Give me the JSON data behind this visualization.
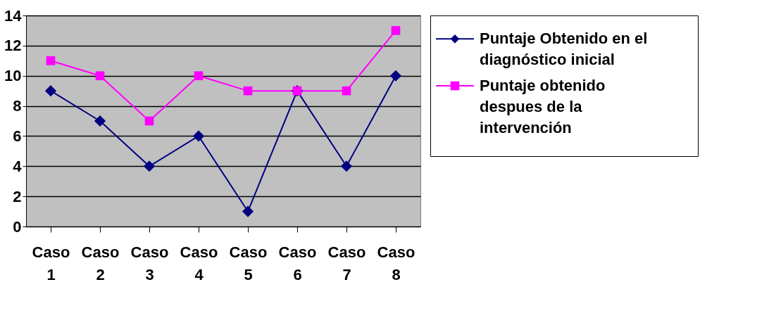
{
  "chart_data": {
    "type": "line",
    "categories": [
      "Caso 1",
      "Caso 2",
      "Caso 3",
      "Caso 4",
      "Caso 5",
      "Caso 6",
      "Caso 7",
      "Caso 8"
    ],
    "series": [
      {
        "name": "Puntaje Obtenido en el diagnóstico inicial",
        "color": "#000080",
        "marker": "diamond",
        "values": [
          9,
          7,
          4,
          6,
          1,
          9,
          4,
          10
        ]
      },
      {
        "name": "Puntaje obtenido despues de la intervención",
        "color": "#ff00ff",
        "marker": "square",
        "values": [
          11,
          10,
          7,
          10,
          9,
          9,
          9,
          13
        ]
      }
    ],
    "ylim": [
      0,
      14
    ],
    "yticks": [
      0,
      2,
      4,
      6,
      8,
      10,
      12,
      14
    ],
    "grid": "y",
    "legend": "right",
    "line_style": "solid"
  }
}
